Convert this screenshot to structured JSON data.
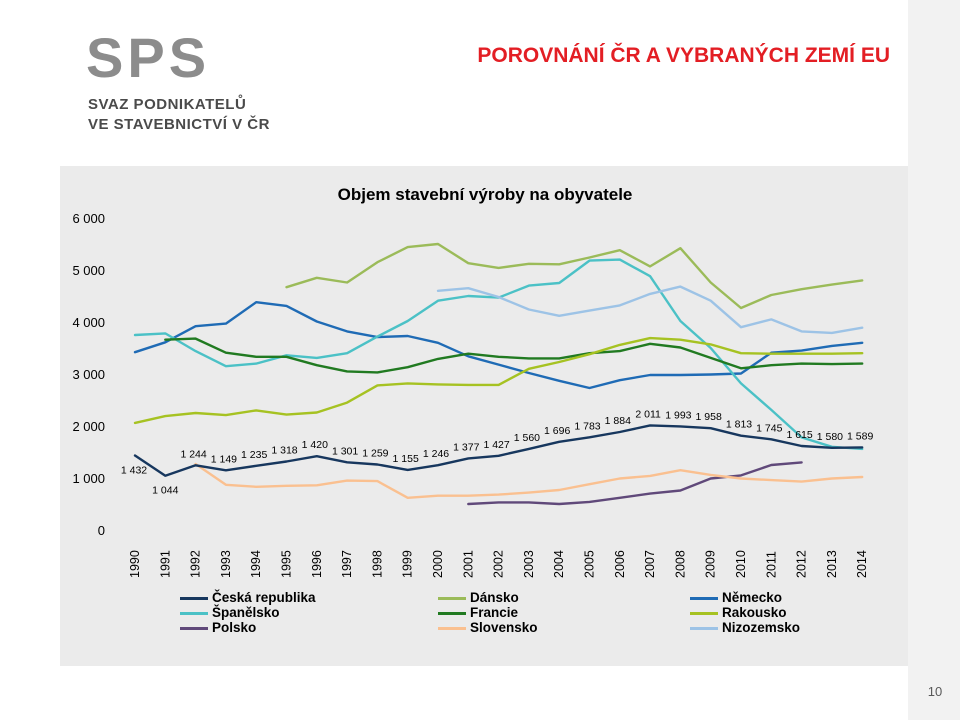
{
  "logo": {
    "letters": "SPS",
    "line1": "SVAZ PODNIKATELŮ",
    "line2": "VE STAVEBNICTVÍ V ČR"
  },
  "slide_title": "POROVNÁNÍ ČR A VYBRANÝCH ZEMÍ EU",
  "page_number": "10",
  "chart_data": {
    "type": "line",
    "title": "Objem stavební výroby na obyvatele",
    "xlabel": "",
    "ylabel": "",
    "ylim": [
      0,
      6000
    ],
    "yticks": [
      "0",
      "1 000",
      "2 000",
      "3 000",
      "4 000",
      "5 000",
      "6 000"
    ],
    "grid": false,
    "legend_position": "bottom",
    "categories": [
      "1990",
      "1991",
      "1992",
      "1993",
      "1994",
      "1995",
      "1996",
      "1997",
      "1998",
      "1999",
      "2000",
      "2001",
      "2002",
      "2003",
      "2004",
      "2005",
      "2006",
      "2007",
      "2008",
      "2009",
      "2010",
      "2011",
      "2012",
      "2013",
      "2014"
    ],
    "series": [
      {
        "name": "Česká republika",
        "color": "#17375e",
        "values": [
          1432,
          1044,
          1244,
          1149,
          1235,
          1318,
          1420,
          1301,
          1259,
          1155,
          1246,
          1377,
          1427,
          1560,
          1696,
          1783,
          1884,
          2011,
          1993,
          1958,
          1813,
          1745,
          1615,
          1580,
          1589
        ],
        "labels": [
          "1 432",
          "1 044",
          "1 244",
          "1 149",
          "1 235",
          "1 318",
          "1 420",
          "1 301",
          "1 259",
          "1 155",
          "1 246",
          "1 377",
          "1 427",
          "1 560",
          "1 696",
          "1 783",
          "1 884",
          "2 011",
          "1 993",
          "1 958",
          "1 813",
          "1 745",
          "1 615",
          "1 580",
          "1 589"
        ]
      },
      {
        "name": "Dánsko",
        "color": "#9bbb59",
        "values": [
          null,
          null,
          null,
          null,
          null,
          4670,
          4850,
          4760,
          5150,
          5440,
          5500,
          5130,
          5040,
          5120,
          5110,
          5240,
          5380,
          5070,
          5420,
          4760,
          4270,
          4520,
          4630,
          4720,
          4800
        ]
      },
      {
        "name": "Německo",
        "color": "#1f6bb5",
        "values": [
          3420,
          3610,
          3920,
          3970,
          4380,
          4310,
          4010,
          3820,
          3710,
          3730,
          3600,
          3340,
          3180,
          3020,
          2870,
          2730,
          2880,
          2980,
          2980,
          2990,
          3010,
          3410,
          3450,
          3540,
          3600
        ]
      },
      {
        "name": "Španělsko",
        "color": "#4bc1c6",
        "values": [
          3750,
          3780,
          3440,
          3150,
          3200,
          3360,
          3310,
          3400,
          3720,
          4020,
          4410,
          4500,
          4470,
          4700,
          4750,
          5180,
          5200,
          4880,
          4020,
          3500,
          2820,
          2310,
          1780,
          1600,
          1560
        ]
      },
      {
        "name": "Francie",
        "color": "#217a21",
        "values": [
          null,
          3660,
          3680,
          3410,
          3330,
          3330,
          3170,
          3050,
          3030,
          3130,
          3290,
          3390,
          3330,
          3300,
          3300,
          3400,
          3440,
          3580,
          3510,
          3310,
          3110,
          3170,
          3200,
          3190,
          3200
        ]
      },
      {
        "name": "Rakousko",
        "color": "#a6c222",
        "values": [
          2060,
          2190,
          2250,
          2210,
          2300,
          2220,
          2260,
          2450,
          2780,
          2820,
          2800,
          2790,
          2790,
          3100,
          3230,
          3380,
          3560,
          3690,
          3660,
          3570,
          3400,
          3390,
          3390,
          3390,
          3400
        ]
      },
      {
        "name": "Polsko",
        "color": "#60497a",
        "values": [
          null,
          null,
          null,
          null,
          null,
          null,
          null,
          null,
          null,
          null,
          null,
          500,
          530,
          530,
          500,
          540,
          620,
          700,
          760,
          990,
          1050,
          1250,
          1300,
          null,
          null
        ]
      },
      {
        "name": "Slovensko",
        "color": "#fac090",
        "values": [
          null,
          null,
          1270,
          870,
          830,
          850,
          860,
          950,
          940,
          620,
          660,
          660,
          680,
          720,
          770,
          880,
          990,
          1040,
          1150,
          1060,
          990,
          960,
          930,
          990,
          1020
        ]
      },
      {
        "name": "Nizozemsko",
        "color": "#9dc3e6",
        "values": [
          null,
          null,
          null,
          null,
          null,
          null,
          null,
          null,
          null,
          null,
          4600,
          4650,
          4480,
          4240,
          4120,
          4220,
          4320,
          4540,
          4680,
          4410,
          3900,
          4050,
          3820,
          3790,
          3890
        ]
      }
    ]
  }
}
